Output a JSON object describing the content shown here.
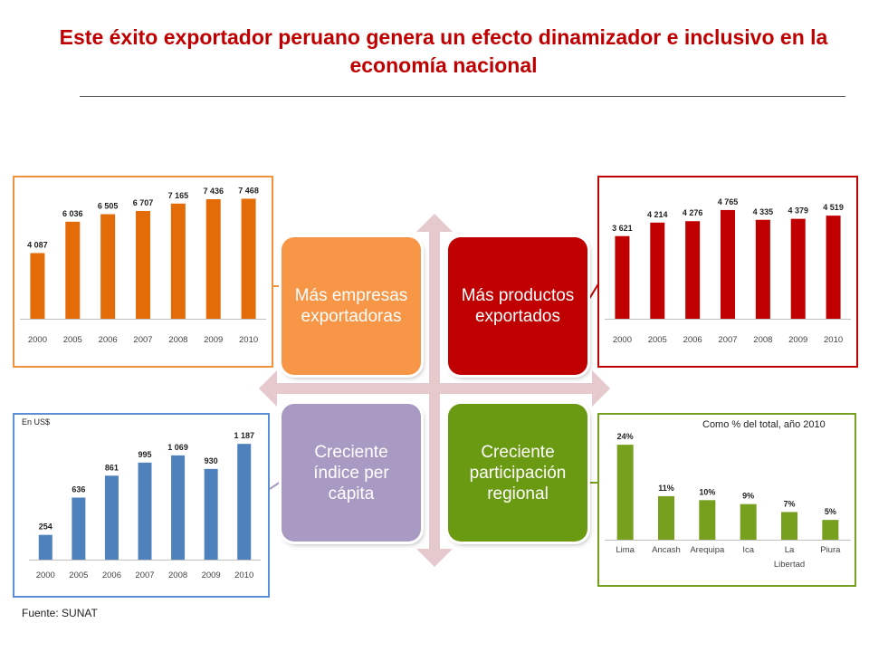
{
  "title": "Este éxito exportador peruano genera un efecto dinamizador e inclusivo en la economía nacional",
  "source": "Fuente: SUNAT",
  "colors": {
    "orange_panel": "#f0913c",
    "red_panel": "#c00000",
    "blue_panel": "#5b8fd6",
    "green_panel": "#6aa84f",
    "orange_quad": "#f79646",
    "red_quad": "#c00000",
    "purple_quad": "#a99ac4",
    "green_quad": "#6a9a12",
    "arrow": "#e6c9cc"
  },
  "quadrants": {
    "top_left": "Más empresas exportadoras",
    "top_right": "Más productos exportados",
    "bottom_left": "Creciente índice per cápita",
    "bottom_right": "Creciente participación regional"
  },
  "panel_notes": {
    "bottom_left_unit": "En US$",
    "bottom_right_note": "Como % del total, año 2010"
  },
  "chart_data": [
    {
      "type": "bar",
      "categories": [
        "2000",
        "2005",
        "2006",
        "2007",
        "2008",
        "2009",
        "2010"
      ],
      "values": [
        4087,
        6036,
        6505,
        6707,
        7165,
        7436,
        7468
      ],
      "labels": [
        "4 087",
        "6 036",
        "6 505",
        "6 707",
        "7 165",
        "7 436",
        "7 468"
      ],
      "ylim": [
        0,
        8000
      ],
      "color": "#e36c09"
    },
    {
      "type": "bar",
      "categories": [
        "2000",
        "2005",
        "2006",
        "2007",
        "2008",
        "2009",
        "2010"
      ],
      "values": [
        3621,
        4214,
        4276,
        4765,
        4335,
        4379,
        4519
      ],
      "labels": [
        "3 621",
        "4 214",
        "4 276",
        "4 765",
        "4 335",
        "4 379",
        "4 519"
      ],
      "ylim": [
        0,
        5000
      ],
      "color": "#c00000"
    },
    {
      "type": "bar",
      "categories": [
        "2000",
        "2005",
        "2006",
        "2007",
        "2008",
        "2009",
        "2010"
      ],
      "values": [
        254,
        636,
        861,
        995,
        1069,
        930,
        1187
      ],
      "labels": [
        "254",
        "636",
        "861",
        "995",
        "1 069",
        "930",
        "1 187"
      ],
      "ylim": [
        0,
        1300
      ],
      "color": "#4f81bd"
    },
    {
      "type": "bar",
      "categories": [
        "Lima",
        "Ancash",
        "Arequipa",
        "Ica",
        "La Libertad",
        "Piura"
      ],
      "values": [
        24,
        11,
        10,
        9,
        7,
        5
      ],
      "labels": [
        "24%",
        "11%",
        "10%",
        "9%",
        "7%",
        "5%"
      ],
      "ylim": [
        0,
        27
      ],
      "color": "#76a01d"
    }
  ]
}
